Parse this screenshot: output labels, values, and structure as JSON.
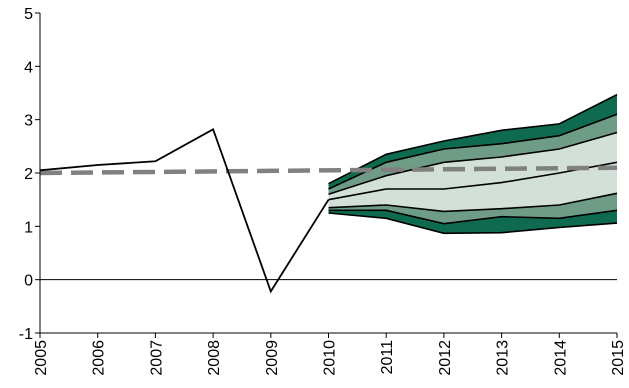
{
  "chart_data": {
    "type": "area",
    "title": "",
    "xlabel": "",
    "ylabel": "",
    "x": [
      2005,
      2006,
      2007,
      2008,
      2009,
      2010,
      2011,
      2012,
      2013,
      2014,
      2015
    ],
    "x_tick_labels": [
      "2005",
      "2006",
      "2007",
      "2008",
      "2009",
      "2010",
      "2011",
      "2012",
      "2013",
      "2014",
      "2015"
    ],
    "y_tick_labels": [
      "-1",
      "0",
      "1",
      "2",
      "3",
      "4",
      "5"
    ],
    "y_ticks": [
      -1,
      0,
      1,
      2,
      3,
      4,
      5
    ],
    "xlim": [
      2005,
      2015
    ],
    "ylim": [
      -1,
      5
    ],
    "grid": false,
    "legend": "none",
    "history": {
      "x": [
        2005,
        2006,
        2007,
        2008,
        2009,
        2010
      ],
      "values": [
        2.05,
        2.15,
        2.22,
        2.82,
        -0.22,
        1.5
      ]
    },
    "target": {
      "x": [
        2005,
        2015
      ],
      "values": [
        2.0,
        2.1
      ],
      "style": "dashed"
    },
    "fan": {
      "x": [
        2010,
        2011,
        2012,
        2013,
        2014,
        2015
      ],
      "central": [
        1.5,
        1.7,
        1.7,
        1.82,
        2.0,
        2.2
      ],
      "bands": [
        {
          "lower": [
            1.35,
            1.4,
            1.28,
            1.33,
            1.4,
            1.62
          ],
          "upper": [
            1.6,
            1.95,
            2.2,
            2.3,
            2.45,
            2.76
          ],
          "color": "#d2e0d8"
        },
        {
          "lower": [
            1.3,
            1.3,
            1.05,
            1.18,
            1.15,
            1.3
          ],
          "upper": [
            1.7,
            2.2,
            2.45,
            2.55,
            2.7,
            3.1
          ],
          "color": "#6f9c86"
        },
        {
          "lower": [
            1.25,
            1.15,
            0.87,
            0.88,
            0.98,
            1.06
          ],
          "upper": [
            1.8,
            2.35,
            2.6,
            2.8,
            2.92,
            3.47
          ],
          "color": "#0f6b50"
        }
      ]
    },
    "colors": {
      "history_line": "#000000",
      "target_line": "#808080",
      "band_border": "#000000"
    }
  }
}
